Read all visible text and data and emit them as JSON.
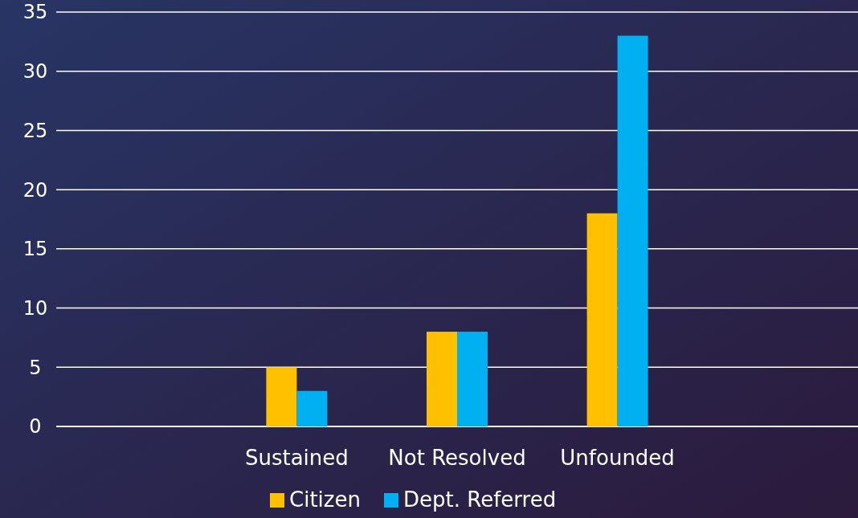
{
  "chart_data": {
    "type": "bar",
    "categories": [
      null,
      "Sustained",
      "Not Resolved",
      "Unfounded",
      null
    ],
    "series": [
      {
        "name": "Citizen",
        "color": "#ffc000",
        "values": [
          null,
          5,
          8,
          18,
          null
        ]
      },
      {
        "name": "Dept. Referred",
        "color": "#00b0f0",
        "values": [
          null,
          3,
          8,
          33,
          null
        ]
      }
    ],
    "ylim": [
      0,
      35
    ],
    "yticks": [
      0,
      5,
      10,
      15,
      20,
      25,
      30,
      35
    ],
    "grid": "y",
    "legend": "bottom"
  }
}
